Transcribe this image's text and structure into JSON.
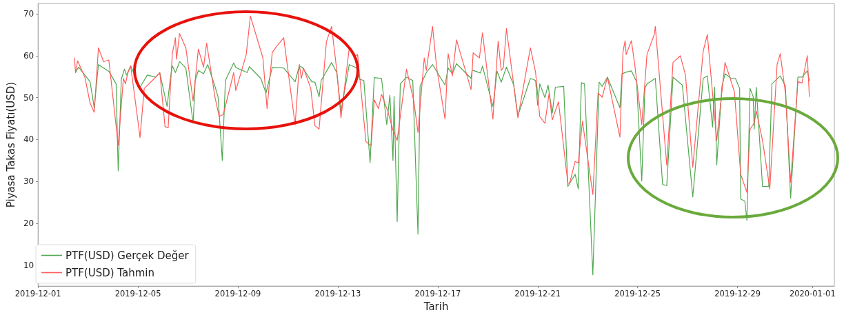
{
  "chart_data": {
    "type": "line",
    "xlabel": "Tarih",
    "ylabel": "Piyasa Takas Fiyatı(USD)",
    "xlim": [
      "2019-12-01",
      "2020-01-01T21:00"
    ],
    "xticks": [
      "2019-12-01",
      "2019-12-05",
      "2019-12-09",
      "2019-12-13",
      "2019-12-17",
      "2019-12-21",
      "2019-12-25",
      "2019-12-29",
      "2020-01-01"
    ],
    "ylim": [
      5,
      72.5
    ],
    "yticks": [
      10,
      20,
      30,
      40,
      50,
      60,
      70
    ],
    "grid": false,
    "legend": "bottom left",
    "marker": "none",
    "line_style": "solid",
    "series": [
      {
        "name": "PTF(USD) Gerçek Değer",
        "color": "#4fa84f",
        "x": [
          "2019-12-02T12:00",
          "2019-12-02T15:00",
          "2019-12-03T02:00",
          "2019-12-03T06:00",
          "2019-12-03T10:00",
          "2019-12-03T20:00",
          "2019-12-04T03:00",
          "2019-12-04T05:00",
          "2019-12-04T08:00",
          "2019-12-04T11:00",
          "2019-12-04T13:00",
          "2019-12-04T17:00",
          "2019-12-05T02:00",
          "2019-12-05T09:00",
          "2019-12-05T17:00",
          "2019-12-05T21:00",
          "2019-12-06T04:00",
          "2019-12-06T07:00",
          "2019-12-06T09:00",
          "2019-12-06T12:00",
          "2019-12-06T16:00",
          "2019-12-06T22:00",
          "2019-12-07T05:00",
          "2019-12-07T07:00",
          "2019-12-07T10:00",
          "2019-12-07T15:00",
          "2019-12-07T19:00",
          "2019-12-08T02:00",
          "2019-12-08T05:00",
          "2019-12-08T09:00",
          "2019-12-08T12:00",
          "2019-12-08T20:00",
          "2019-12-08T22:00",
          "2019-12-09T09:00",
          "2019-12-09T11:00",
          "2019-12-09T22:00",
          "2019-12-10T03:00",
          "2019-12-10T09:00",
          "2019-12-10T20:00",
          "2019-12-11T07:00",
          "2019-12-11T11:00",
          "2019-12-11T14:00",
          "2019-12-11T23:00",
          "2019-12-12T02:00",
          "2019-12-12T06:00",
          "2019-12-12T08:00",
          "2019-12-12T18:00",
          "2019-12-12T23:00",
          "2019-12-13T03:00",
          "2019-12-13T11:00",
          "2019-12-13T18:00",
          "2019-12-13T21:00",
          "2019-12-14T01:00",
          "2019-12-14T07:00",
          "2019-12-14T11:00",
          "2019-12-14T18:00",
          "2019-12-14T23:00",
          "2019-12-15T02:00",
          "2019-12-15T05:00",
          "2019-12-15T06:00",
          "2019-12-15T09:00",
          "2019-12-15T12:00",
          "2019-12-15T18:00",
          "2019-12-16T00:00",
          "2019-12-16T05:00",
          "2019-12-16T07:00",
          "2019-12-16T13:00",
          "2019-12-16T19:00",
          "2019-12-17T07:00",
          "2019-12-17T10:00",
          "2019-12-17T14:00",
          "2019-12-17T18:00",
          "2019-12-18T08:00",
          "2019-12-18T09:00",
          "2019-12-18T17:00",
          "2019-12-18T19:00",
          "2019-12-19T05:00",
          "2019-12-19T09:00",
          "2019-12-19T13:00",
          "2019-12-19T18:00",
          "2019-12-20T01:00",
          "2019-12-20T05:00",
          "2019-12-20T17:00",
          "2019-12-20T22:00",
          "2019-12-21T00:00",
          "2019-12-21T02:00",
          "2019-12-21T07:00",
          "2019-12-21T10:00",
          "2019-12-21T14:00",
          "2019-12-21T17:00",
          "2019-12-22T01:00",
          "2019-12-22T05:00",
          "2019-12-22T12:00",
          "2019-12-22T15:00",
          "2019-12-22T18:00",
          "2019-12-22T21:00",
          "2019-12-23T05:00",
          "2019-12-23T11:00",
          "2019-12-23T14:00",
          "2019-12-23T19:00",
          "2019-12-24T07:00",
          "2019-12-24T09:00",
          "2019-12-24T13:00",
          "2019-12-24T18:00",
          "2019-12-24T23:00",
          "2019-12-25T04:00",
          "2019-12-25T07:00",
          "2019-12-25T09:00",
          "2019-12-25T17:00",
          "2019-12-26T00:00",
          "2019-12-26T04:00",
          "2019-12-26T10:00",
          "2019-12-26T19:00",
          "2019-12-27T05:00",
          "2019-12-27T15:00",
          "2019-12-27T19:00",
          "2019-12-28T00:00",
          "2019-12-28T02:00",
          "2019-12-28T04:00",
          "2019-12-28T09:00",
          "2019-12-28T12:00",
          "2019-12-28T18:00",
          "2019-12-28T22:00",
          "2019-12-29T02:00",
          "2019-12-29T03:00",
          "2019-12-29T07:00",
          "2019-12-29T09:00",
          "2019-12-29T12:00",
          "2019-12-29T15:00",
          "2019-12-29T16:00",
          "2019-12-29T18:00",
          "2019-12-30T00:00",
          "2019-12-30T06:00",
          "2019-12-30T09:00",
          "2019-12-30T17:00",
          "2019-12-30T22:00",
          "2019-12-31T03:00",
          "2019-12-31T10:00",
          "2019-12-31T14:00",
          "2019-12-31T19:00",
          "2019-12-31T21:00"
        ],
        "values": [
          56.0,
          57.3,
          53.8,
          47.6,
          57.9,
          56.3,
          53.3,
          32.5,
          54.4,
          56.8,
          55.4,
          57.6,
          52.5,
          55.4,
          54.9,
          55.9,
          47.9,
          54.4,
          57.6,
          56.0,
          58.6,
          57.1,
          43.9,
          54.1,
          56.5,
          55.7,
          57.9,
          52.7,
          50.1,
          35.0,
          54.1,
          58.3,
          57.2,
          56.0,
          57.4,
          54.6,
          51.1,
          57.2,
          57.1,
          53.8,
          57.6,
          57.2,
          53.8,
          53.7,
          50.2,
          54.1,
          58.4,
          56.0,
          46.8,
          57.9,
          57.1,
          54.4,
          54.1,
          34.5,
          54.8,
          54.6,
          43.6,
          50.6,
          35.0,
          50.3,
          20.4,
          53.3,
          54.9,
          54.1,
          17.4,
          52.7,
          56.0,
          57.9,
          53.0,
          57.1,
          55.7,
          58.1,
          54.6,
          56.6,
          55.9,
          57.5,
          47.9,
          56.3,
          53.7,
          57.3,
          53.0,
          45.7,
          54.6,
          54.1,
          48.2,
          53.3,
          50.0,
          53.0,
          46.3,
          52.5,
          52.7,
          28.8,
          31.7,
          28.2,
          53.6,
          53.3,
          7.7,
          53.7,
          52.7,
          54.9,
          47.6,
          55.7,
          56.1,
          56.4,
          53.8,
          30.1,
          52.2,
          53.3,
          54.6,
          29.3,
          29.0,
          54.9,
          53.0,
          26.3,
          54.6,
          55.2,
          43.0,
          52.5,
          33.9,
          52.7,
          55.7,
          54.6,
          54.6,
          52.2,
          25.8,
          25.3,
          20.7,
          52.2,
          50.3,
          42.5,
          52.5,
          28.8,
          28.8,
          53.3,
          55.2,
          52.7,
          26.0,
          54.9,
          54.9,
          56.4,
          54.1
        ]
      },
      {
        "name": "PTF(USD) Tahmin",
        "color": "#ff5c5c",
        "x": [
          "2019-12-02T11:00",
          "2019-12-02T12:00",
          "2019-12-02T14:00",
          "2019-12-02T21:00",
          "2019-12-03T02:00",
          "2019-12-03T06:00",
          "2019-12-03T10:00",
          "2019-12-03T15:00",
          "2019-12-03T20:00",
          "2019-12-04T05:00",
          "2019-12-04T10:00",
          "2019-12-04T12:00",
          "2019-12-04T14:00",
          "2019-12-04T17:00",
          "2019-12-05T02:00",
          "2019-12-05T06:00",
          "2019-12-05T15:00",
          "2019-12-05T21:00",
          "2019-12-06T02:00",
          "2019-12-06T05:00",
          "2019-12-06T09:00",
          "2019-12-06T12:00",
          "2019-12-06T13:00",
          "2019-12-06T16:00",
          "2019-12-06T22:00",
          "2019-12-07T05:00",
          "2019-12-07T10:00",
          "2019-12-07T15:00",
          "2019-12-07T18:00",
          "2019-12-08T02:00",
          "2019-12-08T06:00",
          "2019-12-08T10:00",
          "2019-12-08T20:00",
          "2019-12-08T22:00",
          "2019-12-09T08:00",
          "2019-12-09T12:00",
          "2019-12-10T00:00",
          "2019-12-10T04:00",
          "2019-12-10T09:00",
          "2019-12-10T13:00",
          "2019-12-10T20:00",
          "2019-12-11T07:00",
          "2019-12-11T11:00",
          "2019-12-11T13:00",
          "2019-12-11T15:00",
          "2019-12-11T22:00",
          "2019-12-12T02:00",
          "2019-12-12T06:00",
          "2019-12-12T13:00",
          "2019-12-12T18:00",
          "2019-12-12T23:00",
          "2019-12-13T03:00",
          "2019-12-13T11:00",
          "2019-12-13T17:00",
          "2019-12-13T19:00",
          "2019-12-14T03:00",
          "2019-12-14T08:00",
          "2019-12-14T11:00",
          "2019-12-14T15:00",
          "2019-12-14T18:00",
          "2019-12-15T00:00",
          "2019-12-15T05:00",
          "2019-12-15T09:00",
          "2019-12-15T18:00",
          "2019-12-16T01:00",
          "2019-12-16T05:00",
          "2019-12-16T11:00",
          "2019-12-16T13:00",
          "2019-12-16T19:00",
          "2019-12-16T23:00",
          "2019-12-17T07:00",
          "2019-12-17T10:00",
          "2019-12-17T14:00",
          "2019-12-17T18:00",
          "2019-12-18T08:00",
          "2019-12-18T10:00",
          "2019-12-18T16:00",
          "2019-12-18T19:00",
          "2019-12-19T05:00",
          "2019-12-19T10:00",
          "2019-12-19T13:00",
          "2019-12-19T15:00",
          "2019-12-19T18:00",
          "2019-12-20T05:00",
          "2019-12-20T17:00",
          "2019-12-20T22:00",
          "2019-12-21T02:00",
          "2019-12-21T07:00",
          "2019-12-21T11:00",
          "2019-12-21T14:00",
          "2019-12-21T20:00",
          "2019-12-22T05:00",
          "2019-12-22T07:00",
          "2019-12-22T12:00",
          "2019-12-22T15:00",
          "2019-12-22T19:00",
          "2019-12-23T05:00",
          "2019-12-23T10:00",
          "2019-12-23T14:00",
          "2019-12-23T19:00",
          "2019-12-24T07:00",
          "2019-12-24T10:00",
          "2019-12-24T12:00",
          "2019-12-24T13:00",
          "2019-12-24T18:00",
          "2019-12-24T21:00",
          "2019-12-25T04:00",
          "2019-12-25T09:00",
          "2019-12-25T16:00",
          "2019-12-25T17:00",
          "2019-12-26T04:00",
          "2019-12-26T10:00",
          "2019-12-26T17:00",
          "2019-12-26T22:00",
          "2019-12-27T05:00",
          "2019-12-27T15:00",
          "2019-12-27T19:00",
          "2019-12-28T04:00",
          "2019-12-28T12:00",
          "2019-12-28T21:00",
          "2019-12-29T03:00",
          "2019-12-29T09:00",
          "2019-12-29T12:00",
          "2019-12-29T16:00",
          "2019-12-29T18:00",
          "2019-12-30T00:00",
          "2019-12-30T07:00",
          "2019-12-30T14:00",
          "2019-12-30T17:00",
          "2019-12-30T22:00",
          "2019-12-31T03:00",
          "2019-12-31T10:00",
          "2019-12-31T14:00",
          "2019-12-31T19:00",
          "2019-12-31T21:00"
        ],
        "values": [
          59.5,
          56.0,
          58.8,
          54.9,
          48.7,
          46.5,
          61.9,
          58.6,
          59.0,
          38.7,
          54.6,
          53.3,
          55.7,
          57.6,
          40.5,
          52.2,
          54.4,
          56.0,
          43.1,
          42.8,
          60.5,
          64.3,
          59.2,
          65.3,
          61.9,
          49.2,
          61.6,
          57.3,
          63.0,
          50.1,
          45.5,
          46.0,
          56.0,
          51.7,
          60.3,
          69.5,
          59.5,
          47.4,
          60.8,
          62.2,
          64.3,
          43.5,
          57.9,
          54.6,
          57.1,
          52.2,
          43.3,
          42.5,
          63.3,
          67.0,
          56.5,
          45.2,
          61.9,
          60.0,
          60.3,
          39.5,
          38.5,
          49.5,
          47.4,
          50.8,
          46.8,
          42.2,
          39.8,
          56.8,
          49.2,
          41.7,
          59.5,
          56.5,
          67.0,
          57.1,
          44.9,
          60.5,
          55.2,
          63.8,
          51.9,
          60.7,
          59.5,
          65.5,
          44.9,
          63.5,
          56.5,
          57.2,
          66.5,
          45.2,
          61.9,
          56.0,
          45.5,
          43.9,
          51.1,
          44.7,
          49.0,
          29.5,
          29.8,
          34.8,
          34.4,
          44.4,
          26.9,
          51.1,
          50.1,
          54.9,
          40.6,
          61.1,
          63.6,
          60.3,
          63.6,
          58.4,
          43.6,
          60.3,
          65.1,
          67.0,
          33.9,
          58.4,
          60.0,
          55.4,
          33.4,
          61.1,
          65.1,
          39.8,
          58.4,
          51.4,
          31.7,
          27.4,
          42.5,
          43.9,
          46.8,
          39.8,
          28.2,
          57.9,
          60.5,
          51.1,
          29.8,
          53.8,
          53.5,
          60.0,
          50.3
        ]
      }
    ]
  }
}
